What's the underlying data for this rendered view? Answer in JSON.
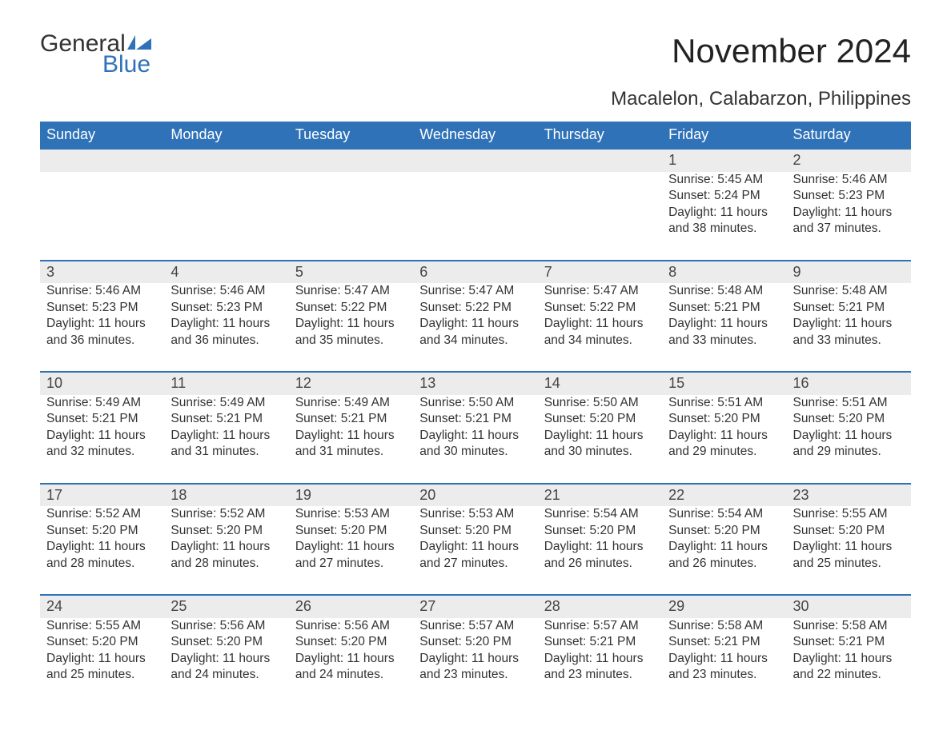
{
  "logo": {
    "word1": "General",
    "word2": "Blue"
  },
  "title": "November 2024",
  "location": "Macalelon, Calabarzon, Philippines",
  "colors": {
    "header_bg": "#2f72b8",
    "header_text": "#ffffff",
    "daynum_bg": "#ececec",
    "rule": "#2f72b8",
    "body_text": "#333333",
    "logo_blue": "#2f72b8"
  },
  "typography": {
    "title_fontsize": 42,
    "location_fontsize": 24,
    "header_fontsize": 18,
    "cell_fontsize": 15.5,
    "daynum_fontsize": 18
  },
  "weekdays": [
    "Sunday",
    "Monday",
    "Tuesday",
    "Wednesday",
    "Thursday",
    "Friday",
    "Saturday"
  ],
  "weeks": [
    [
      null,
      null,
      null,
      null,
      null,
      {
        "n": "1",
        "sunrise": "5:45 AM",
        "sunset": "5:24 PM",
        "daylight": "11 hours and 38 minutes."
      },
      {
        "n": "2",
        "sunrise": "5:46 AM",
        "sunset": "5:23 PM",
        "daylight": "11 hours and 37 minutes."
      }
    ],
    [
      {
        "n": "3",
        "sunrise": "5:46 AM",
        "sunset": "5:23 PM",
        "daylight": "11 hours and 36 minutes."
      },
      {
        "n": "4",
        "sunrise": "5:46 AM",
        "sunset": "5:23 PM",
        "daylight": "11 hours and 36 minutes."
      },
      {
        "n": "5",
        "sunrise": "5:47 AM",
        "sunset": "5:22 PM",
        "daylight": "11 hours and 35 minutes."
      },
      {
        "n": "6",
        "sunrise": "5:47 AM",
        "sunset": "5:22 PM",
        "daylight": "11 hours and 34 minutes."
      },
      {
        "n": "7",
        "sunrise": "5:47 AM",
        "sunset": "5:22 PM",
        "daylight": "11 hours and 34 minutes."
      },
      {
        "n": "8",
        "sunrise": "5:48 AM",
        "sunset": "5:21 PM",
        "daylight": "11 hours and 33 minutes."
      },
      {
        "n": "9",
        "sunrise": "5:48 AM",
        "sunset": "5:21 PM",
        "daylight": "11 hours and 33 minutes."
      }
    ],
    [
      {
        "n": "10",
        "sunrise": "5:49 AM",
        "sunset": "5:21 PM",
        "daylight": "11 hours and 32 minutes."
      },
      {
        "n": "11",
        "sunrise": "5:49 AM",
        "sunset": "5:21 PM",
        "daylight": "11 hours and 31 minutes."
      },
      {
        "n": "12",
        "sunrise": "5:49 AM",
        "sunset": "5:21 PM",
        "daylight": "11 hours and 31 minutes."
      },
      {
        "n": "13",
        "sunrise": "5:50 AM",
        "sunset": "5:21 PM",
        "daylight": "11 hours and 30 minutes."
      },
      {
        "n": "14",
        "sunrise": "5:50 AM",
        "sunset": "5:20 PM",
        "daylight": "11 hours and 30 minutes."
      },
      {
        "n": "15",
        "sunrise": "5:51 AM",
        "sunset": "5:20 PM",
        "daylight": "11 hours and 29 minutes."
      },
      {
        "n": "16",
        "sunrise": "5:51 AM",
        "sunset": "5:20 PM",
        "daylight": "11 hours and 29 minutes."
      }
    ],
    [
      {
        "n": "17",
        "sunrise": "5:52 AM",
        "sunset": "5:20 PM",
        "daylight": "11 hours and 28 minutes."
      },
      {
        "n": "18",
        "sunrise": "5:52 AM",
        "sunset": "5:20 PM",
        "daylight": "11 hours and 28 minutes."
      },
      {
        "n": "19",
        "sunrise": "5:53 AM",
        "sunset": "5:20 PM",
        "daylight": "11 hours and 27 minutes."
      },
      {
        "n": "20",
        "sunrise": "5:53 AM",
        "sunset": "5:20 PM",
        "daylight": "11 hours and 27 minutes."
      },
      {
        "n": "21",
        "sunrise": "5:54 AM",
        "sunset": "5:20 PM",
        "daylight": "11 hours and 26 minutes."
      },
      {
        "n": "22",
        "sunrise": "5:54 AM",
        "sunset": "5:20 PM",
        "daylight": "11 hours and 26 minutes."
      },
      {
        "n": "23",
        "sunrise": "5:55 AM",
        "sunset": "5:20 PM",
        "daylight": "11 hours and 25 minutes."
      }
    ],
    [
      {
        "n": "24",
        "sunrise": "5:55 AM",
        "sunset": "5:20 PM",
        "daylight": "11 hours and 25 minutes."
      },
      {
        "n": "25",
        "sunrise": "5:56 AM",
        "sunset": "5:20 PM",
        "daylight": "11 hours and 24 minutes."
      },
      {
        "n": "26",
        "sunrise": "5:56 AM",
        "sunset": "5:20 PM",
        "daylight": "11 hours and 24 minutes."
      },
      {
        "n": "27",
        "sunrise": "5:57 AM",
        "sunset": "5:20 PM",
        "daylight": "11 hours and 23 minutes."
      },
      {
        "n": "28",
        "sunrise": "5:57 AM",
        "sunset": "5:21 PM",
        "daylight": "11 hours and 23 minutes."
      },
      {
        "n": "29",
        "sunrise": "5:58 AM",
        "sunset": "5:21 PM",
        "daylight": "11 hours and 23 minutes."
      },
      {
        "n": "30",
        "sunrise": "5:58 AM",
        "sunset": "5:21 PM",
        "daylight": "11 hours and 22 minutes."
      }
    ]
  ],
  "labels": {
    "sunrise": "Sunrise: ",
    "sunset": "Sunset: ",
    "daylight": "Daylight: "
  }
}
